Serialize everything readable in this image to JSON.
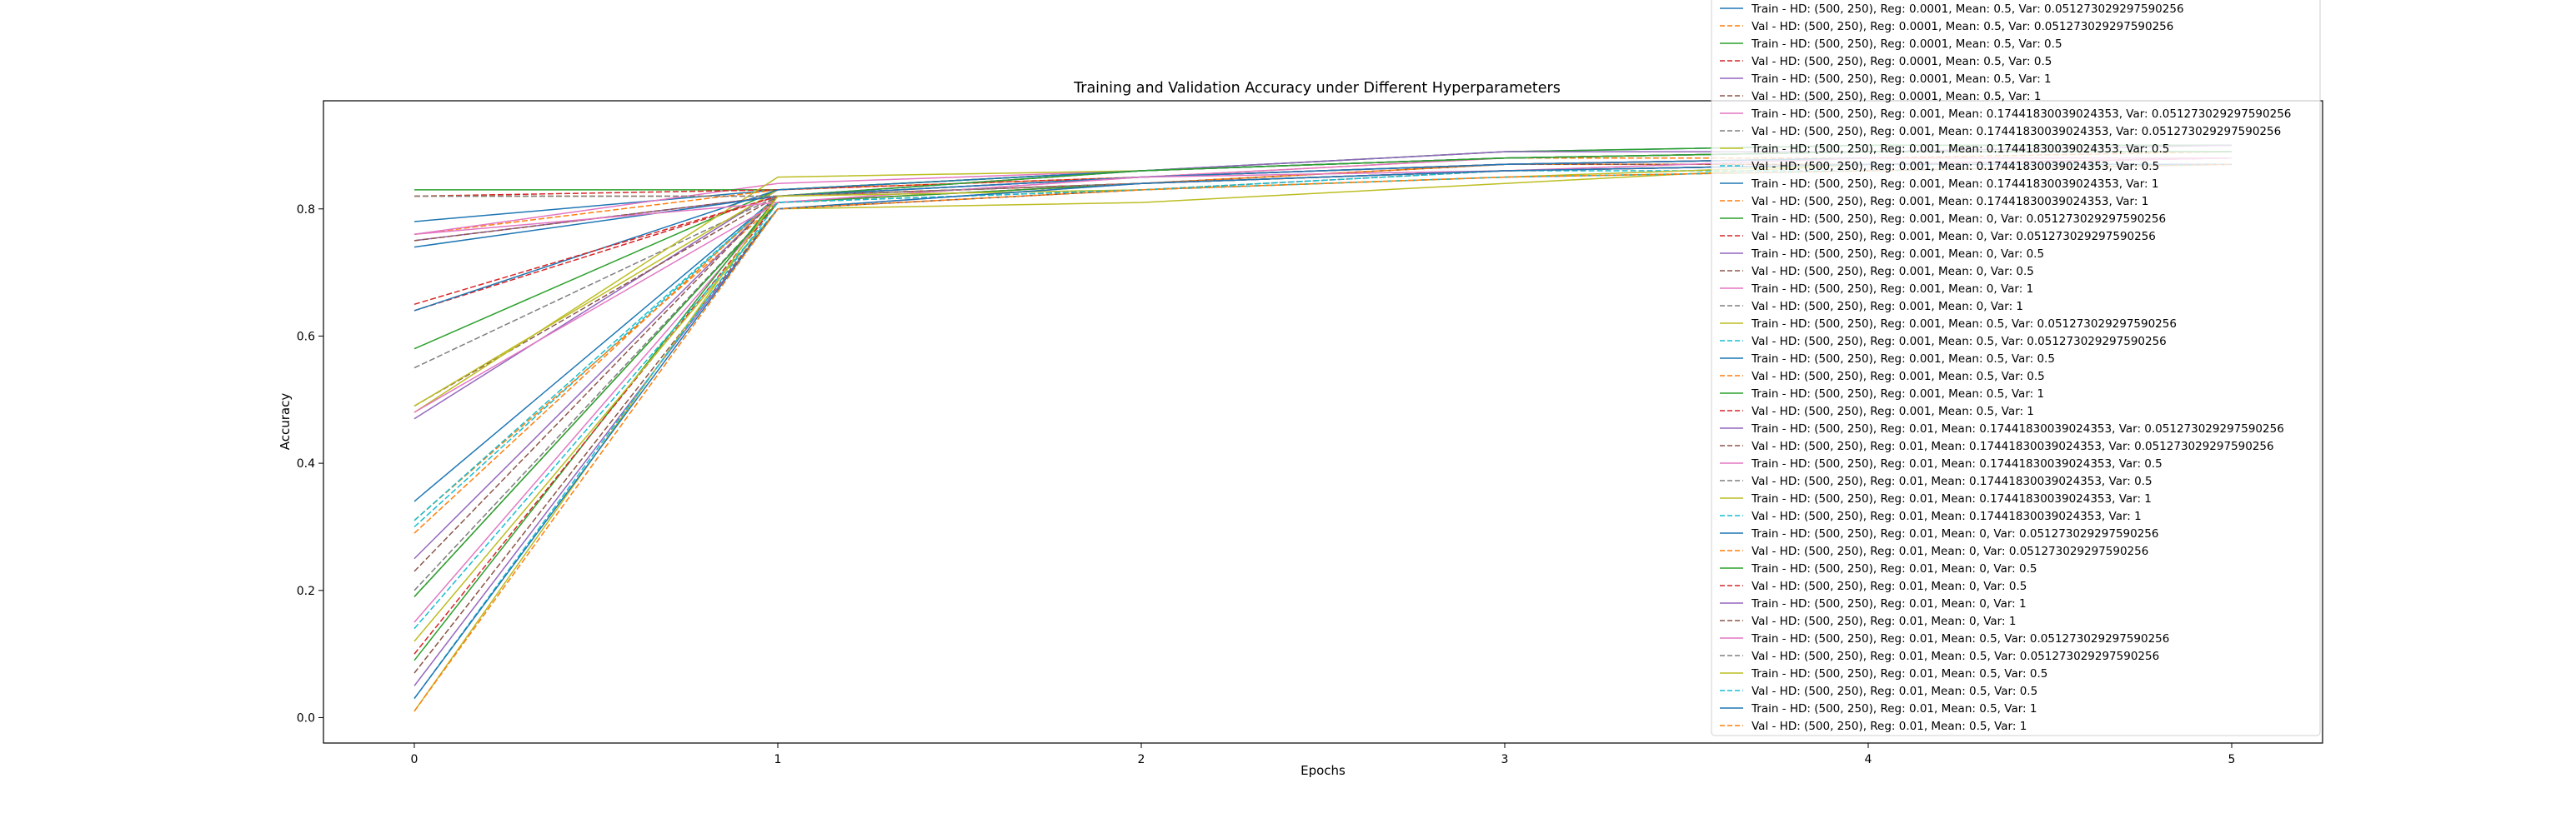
{
  "chart_data": {
    "type": "line",
    "title": "Training and Validation Accuracy under Different Hyperparameters",
    "xlabel": "Epochs",
    "ylabel": "Accuracy",
    "x": [
      0,
      1,
      2,
      3,
      4,
      5
    ],
    "xticks": [
      "0",
      "1",
      "2",
      "3",
      "4",
      "5"
    ],
    "yticks": [
      "0.0",
      "0.2",
      "0.4",
      "0.6",
      "0.8"
    ],
    "xlim": [
      -0.25,
      5.25
    ],
    "ylim": [
      -0.04,
      0.97
    ],
    "grid": false,
    "legend_placement": "upper right (extends above axes)",
    "series": [
      {
        "name": "Train - HD: (500, 250), Reg: 0.0001, Mean: 0.5, Var: 0.051273029297590256",
        "color": "#1f77b4",
        "dash": false,
        "values": [
          0.78,
          0.83,
          0.86,
          0.89,
          0.9,
          0.9
        ]
      },
      {
        "name": "Val - HD: (500, 250), Reg: 0.0001, Mean: 0.5, Var: 0.051273029297590256",
        "color": "#ff7f0e",
        "dash": true,
        "values": [
          0.76,
          0.83,
          0.85,
          0.88,
          0.88,
          0.89
        ]
      },
      {
        "name": "Train - HD: (500, 250), Reg: 0.0001, Mean: 0.5, Var: 0.5",
        "color": "#2ca02c",
        "dash": false,
        "values": [
          0.58,
          0.83,
          0.86,
          0.89,
          0.9,
          0.9
        ]
      },
      {
        "name": "Val - HD: (500, 250), Reg: 0.0001, Mean: 0.5, Var: 0.5",
        "color": "#d62728",
        "dash": true,
        "values": [
          0.64,
          0.82,
          0.85,
          0.87,
          0.88,
          0.88
        ]
      },
      {
        "name": "Train - HD: (500, 250), Reg: 0.0001, Mean: 0.5, Var: 1",
        "color": "#9467bd",
        "dash": false,
        "values": [
          0.47,
          0.83,
          0.86,
          0.89,
          0.89,
          0.9
        ]
      },
      {
        "name": "Val - HD: (500, 250), Reg: 0.0001, Mean: 0.5, Var: 1",
        "color": "#8c564b",
        "dash": true,
        "values": [
          0.49,
          0.82,
          0.85,
          0.87,
          0.88,
          0.88
        ]
      },
      {
        "name": "Train - HD: (500, 250), Reg: 0.001, Mean: 0.17441830039024353, Var: 0.051273029297590256",
        "color": "#e377c2",
        "dash": false,
        "values": [
          0.76,
          0.84,
          0.86,
          0.88,
          0.89,
          0.89
        ]
      },
      {
        "name": "Val - HD: (500, 250), Reg: 0.001, Mean: 0.17441830039024353, Var: 0.051273029297590256",
        "color": "#7f7f7f",
        "dash": true,
        "values": [
          0.55,
          0.82,
          0.85,
          0.87,
          0.88,
          0.88
        ]
      },
      {
        "name": "Train - HD: (500, 250), Reg: 0.001, Mean: 0.17441830039024353, Var: 0.5",
        "color": "#bcbd22",
        "dash": false,
        "values": [
          0.49,
          0.83,
          0.86,
          0.88,
          0.89,
          0.89
        ]
      },
      {
        "name": "Val - HD: (500, 250), Reg: 0.001, Mean: 0.17441830039024353, Var: 0.5",
        "color": "#17becf",
        "dash": true,
        "values": [
          0.3,
          0.82,
          0.84,
          0.87,
          0.88,
          0.88
        ]
      },
      {
        "name": "Train - HD: (500, 250), Reg: 0.001, Mean: 0.17441830039024353, Var: 1",
        "color": "#1f77b4",
        "dash": false,
        "values": [
          0.34,
          0.82,
          0.86,
          0.88,
          0.89,
          0.89
        ]
      },
      {
        "name": "Val - HD: (500, 250), Reg: 0.001, Mean: 0.17441830039024353, Var: 1",
        "color": "#ff7f0e",
        "dash": true,
        "values": [
          0.31,
          0.81,
          0.84,
          0.87,
          0.87,
          0.88
        ]
      },
      {
        "name": "Train - HD: (500, 250), Reg: 0.001, Mean: 0, Var: 0.051273029297590256",
        "color": "#2ca02c",
        "dash": false,
        "values": [
          0.83,
          0.83,
          0.86,
          0.88,
          0.89,
          0.89
        ]
      },
      {
        "name": "Val - HD: (500, 250), Reg: 0.001, Mean: 0, Var: 0.051273029297590256",
        "color": "#d62728",
        "dash": true,
        "values": [
          0.82,
          0.83,
          0.85,
          0.87,
          0.88,
          0.88
        ]
      },
      {
        "name": "Train - HD: (500, 250), Reg: 0.001, Mean: 0, Var: 0.5",
        "color": "#9467bd",
        "dash": false,
        "values": [
          0.25,
          0.82,
          0.86,
          0.88,
          0.89,
          0.89
        ]
      },
      {
        "name": "Val - HD: (500, 250), Reg: 0.001, Mean: 0, Var: 0.5",
        "color": "#8c564b",
        "dash": true,
        "values": [
          0.23,
          0.82,
          0.84,
          0.87,
          0.87,
          0.88
        ]
      },
      {
        "name": "Train - HD: (500, 250), Reg: 0.001, Mean: 0, Var: 1",
        "color": "#e377c2",
        "dash": false,
        "values": [
          0.15,
          0.81,
          0.85,
          0.88,
          0.89,
          0.89
        ]
      },
      {
        "name": "Val - HD: (500, 250), Reg: 0.001, Mean: 0, Var: 1",
        "color": "#7f7f7f",
        "dash": true,
        "values": [
          0.19,
          0.81,
          0.84,
          0.86,
          0.87,
          0.88
        ]
      },
      {
        "name": "Train - HD: (500, 250), Reg: 0.001, Mean: 0.5, Var: 0.051273029297590256",
        "color": "#bcbd22",
        "dash": false,
        "values": [
          0.48,
          0.85,
          0.86,
          0.88,
          0.89,
          0.89
        ]
      },
      {
        "name": "Val - HD: (500, 250), Reg: 0.001, Mean: 0.5, Var: 0.051273029297590256",
        "color": "#17becf",
        "dash": true,
        "values": [
          0.31,
          0.82,
          0.85,
          0.87,
          0.88,
          0.88
        ]
      },
      {
        "name": "Train - HD: (500, 250), Reg: 0.001, Mean: 0.5, Var: 0.5",
        "color": "#1f77b4",
        "dash": false,
        "values": [
          0.64,
          0.83,
          0.86,
          0.88,
          0.89,
          0.89
        ]
      },
      {
        "name": "Val - HD: (500, 250), Reg: 0.001, Mean: 0.5, Var: 0.5",
        "color": "#ff7f0e",
        "dash": true,
        "values": [
          0.29,
          0.82,
          0.84,
          0.87,
          0.88,
          0.88
        ]
      },
      {
        "name": "Train - HD: (500, 250), Reg: 0.001, Mean: 0.5, Var: 1",
        "color": "#2ca02c",
        "dash": false,
        "values": [
          0.09,
          0.82,
          0.86,
          0.88,
          0.89,
          0.89
        ]
      },
      {
        "name": "Val - HD: (500, 250), Reg: 0.001, Mean: 0.5, Var: 1",
        "color": "#d62728",
        "dash": true,
        "values": [
          0.1,
          0.81,
          0.84,
          0.86,
          0.87,
          0.88
        ]
      },
      {
        "name": "Train - HD: (500, 250), Reg: 0.01, Mean: 0.17441830039024353, Var: 0.051273029297590256",
        "color": "#9467bd",
        "dash": false,
        "values": [
          0.75,
          0.82,
          0.85,
          0.87,
          0.88,
          0.88
        ]
      },
      {
        "name": "Val - HD: (500, 250), Reg: 0.01, Mean: 0.17441830039024353, Var: 0.051273029297590256",
        "color": "#8c564b",
        "dash": true,
        "values": [
          0.75,
          0.82,
          0.84,
          0.86,
          0.87,
          0.87
        ]
      },
      {
        "name": "Train - HD: (500, 250), Reg: 0.01, Mean: 0.17441830039024353, Var: 0.5",
        "color": "#e377c2",
        "dash": false,
        "values": [
          0.48,
          0.81,
          0.84,
          0.86,
          0.87,
          0.88
        ]
      },
      {
        "name": "Val - HD: (500, 250), Reg: 0.01, Mean: 0.17441830039024353, Var: 0.5",
        "color": "#7f7f7f",
        "dash": true,
        "values": [
          0.2,
          0.81,
          0.83,
          0.86,
          0.87,
          0.87
        ]
      },
      {
        "name": "Train - HD: (500, 250), Reg: 0.01, Mean: 0.17441830039024353, Var: 1",
        "color": "#bcbd22",
        "dash": false,
        "values": [
          0.12,
          0.8,
          0.81,
          0.84,
          0.87,
          0.87
        ]
      },
      {
        "name": "Val - HD: (500, 250), Reg: 0.01, Mean: 0.17441830039024353, Var: 1",
        "color": "#17becf",
        "dash": true,
        "values": [
          0.14,
          0.8,
          0.83,
          0.86,
          0.86,
          0.87
        ]
      },
      {
        "name": "Train - HD: (500, 250), Reg: 0.01, Mean: 0, Var: 0.051273029297590256",
        "color": "#1f77b4",
        "dash": false,
        "values": [
          0.74,
          0.82,
          0.85,
          0.87,
          0.88,
          0.88
        ]
      },
      {
        "name": "Val - HD: (500, 250), Reg: 0.01, Mean: 0, Var: 0.051273029297590256",
        "color": "#ff7f0e",
        "dash": true,
        "values": [
          0.82,
          0.82,
          0.84,
          0.86,
          0.87,
          0.87
        ]
      },
      {
        "name": "Train - HD: (500, 250), Reg: 0.01, Mean: 0, Var: 0.5",
        "color": "#2ca02c",
        "dash": false,
        "values": [
          0.19,
          0.81,
          0.84,
          0.86,
          0.87,
          0.87
        ]
      },
      {
        "name": "Val - HD: (500, 250), Reg: 0.01, Mean: 0, Var: 0.5",
        "color": "#d62728",
        "dash": true,
        "values": [
          0.65,
          0.82,
          0.84,
          0.86,
          0.87,
          0.87
        ]
      },
      {
        "name": "Train - HD: (500, 250), Reg: 0.01, Mean: 0, Var: 1",
        "color": "#9467bd",
        "dash": false,
        "values": [
          0.05,
          0.8,
          0.84,
          0.86,
          0.87,
          0.87
        ]
      },
      {
        "name": "Val - HD: (500, 250), Reg: 0.01, Mean: 0, Var: 1",
        "color": "#8c564b",
        "dash": true,
        "values": [
          0.07,
          0.8,
          0.83,
          0.85,
          0.86,
          0.87
        ]
      },
      {
        "name": "Train - HD: (500, 250), Reg: 0.01, Mean: 0.5, Var: 0.051273029297590256",
        "color": "#e377c2",
        "dash": false,
        "values": [
          0.76,
          0.81,
          0.85,
          0.86,
          0.88,
          0.88
        ]
      },
      {
        "name": "Val - HD: (500, 250), Reg: 0.01, Mean: 0.5, Var: 0.051273029297590256",
        "color": "#7f7f7f",
        "dash": true,
        "values": [
          0.82,
          0.82,
          0.84,
          0.86,
          0.87,
          0.87
        ]
      },
      {
        "name": "Train - HD: (500, 250), Reg: 0.01, Mean: 0.5, Var: 0.5",
        "color": "#bcbd22",
        "dash": false,
        "values": [
          0.01,
          0.82,
          0.83,
          0.85,
          0.87,
          0.87
        ]
      },
      {
        "name": "Val - HD: (500, 250), Reg: 0.01, Mean: 0.5, Var: 0.5",
        "color": "#17becf",
        "dash": true,
        "values": [
          0.03,
          0.81,
          0.83,
          0.85,
          0.86,
          0.87
        ]
      },
      {
        "name": "Train - HD: (500, 250), Reg: 0.01, Mean: 0.5, Var: 1",
        "color": "#1f77b4",
        "dash": false,
        "values": [
          0.03,
          0.8,
          0.84,
          0.86,
          0.87,
          0.87
        ]
      },
      {
        "name": "Val - HD: (500, 250), Reg: 0.01, Mean: 0.5, Var: 1",
        "color": "#ff7f0e",
        "dash": true,
        "values": [
          0.01,
          0.8,
          0.83,
          0.85,
          0.86,
          0.87
        ]
      }
    ]
  }
}
